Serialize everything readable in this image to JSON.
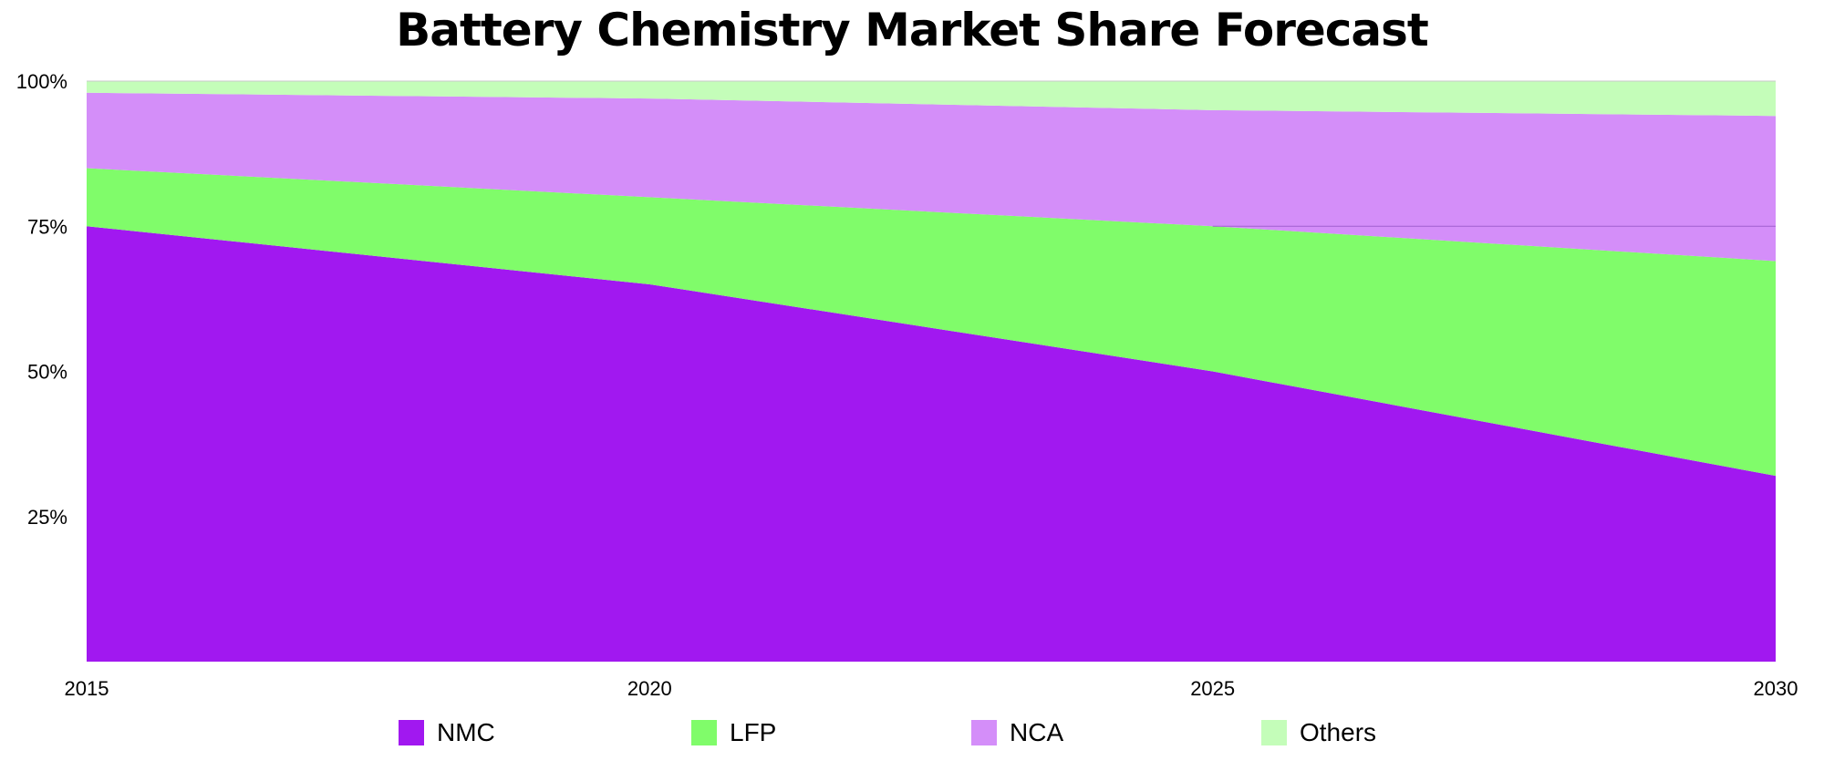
{
  "chart_data": {
    "type": "area",
    "stacked": true,
    "title": "Battery Chemistry Market Share Forecast",
    "x": [
      "2015",
      "2020",
      "2025",
      "2030"
    ],
    "series": [
      {
        "name": "NMC",
        "color": "#a118f0",
        "values": [
          75,
          65,
          50,
          32
        ]
      },
      {
        "name": "LFP",
        "color": "#80fc6a",
        "values": [
          10,
          15,
          25,
          37
        ]
      },
      {
        "name": "NCA",
        "color": "#d48ef9",
        "values": [
          13,
          17,
          20,
          25
        ]
      },
      {
        "name": "Others",
        "color": "#c4fdb9",
        "values": [
          2,
          3,
          5,
          6
        ]
      }
    ],
    "yticks": [
      "100%",
      "75%",
      "50%",
      "25%"
    ],
    "ytick_values": [
      100,
      75,
      50,
      25
    ],
    "ylim": [
      0,
      100
    ],
    "legend_position": "bottom",
    "xlabel": "",
    "ylabel": ""
  }
}
